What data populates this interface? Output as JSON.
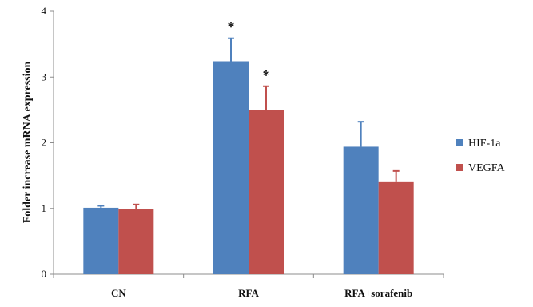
{
  "chart_data": {
    "type": "bar",
    "title": "",
    "xlabel": "",
    "ylabel": "Folder increase mRNA expression",
    "ylim": [
      0,
      4
    ],
    "yticks": [
      0,
      1,
      2,
      3,
      4
    ],
    "categories": [
      "CN",
      "RFA",
      "RFA+sorafenib"
    ],
    "series": [
      {
        "name": "HIF-1a",
        "color": "#4F81BD",
        "values": [
          1.01,
          3.24,
          1.94
        ],
        "errors": [
          0.03,
          0.35,
          0.38
        ]
      },
      {
        "name": "VEGFA",
        "color": "#C0504D",
        "values": [
          0.99,
          2.5,
          1.4
        ],
        "errors": [
          0.07,
          0.36,
          0.17
        ]
      }
    ],
    "annotations": [
      {
        "text": "*",
        "category": "RFA",
        "series": "HIF-1a"
      },
      {
        "text": "*",
        "category": "RFA",
        "series": "VEGFA"
      }
    ],
    "legend_position": "right",
    "grid": false
  }
}
